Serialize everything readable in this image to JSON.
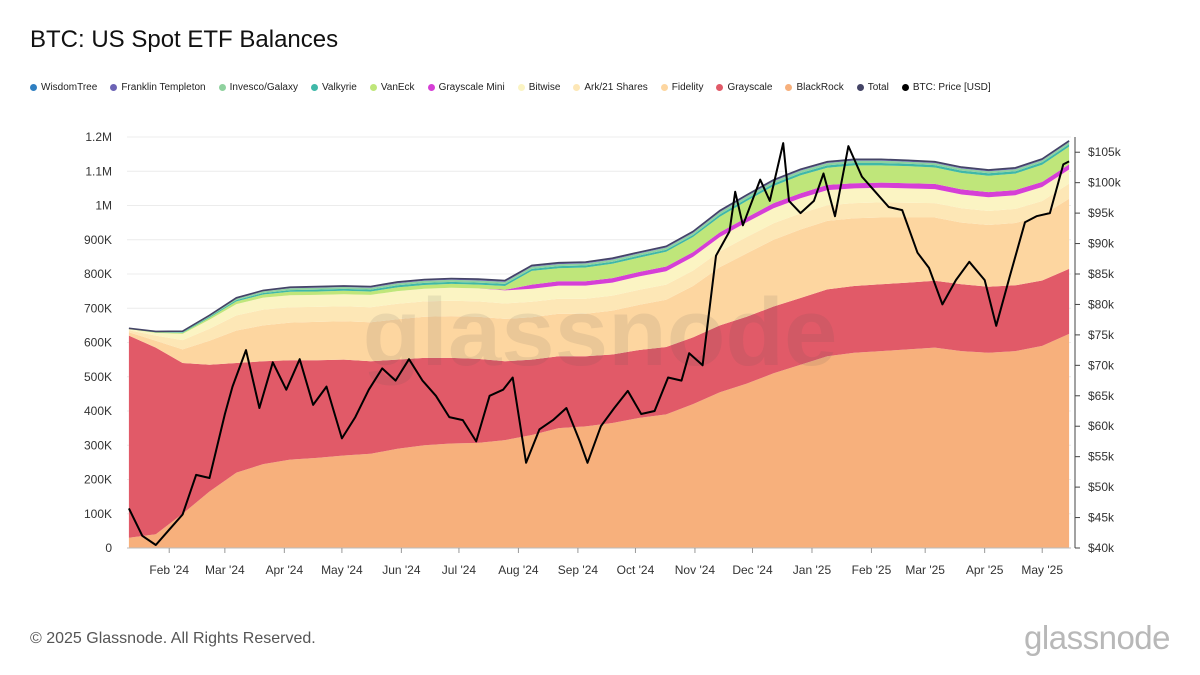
{
  "title": "BTC: US Spot ETF Balances",
  "footer": "© 2025 Glassnode. All Rights Reserved.",
  "brand": "glassnode",
  "watermark": "glassnode",
  "chart_data": {
    "type": "area",
    "title": "BTC: US Spot ETF Balances",
    "x_ticks": [
      "Feb '24",
      "Mar '24",
      "Apr '24",
      "May '24",
      "Jun '24",
      "Jul '24",
      "Aug '24",
      "Sep '24",
      "Oct '24",
      "Nov '24",
      "Dec '24",
      "Jan '25",
      "Feb '25",
      "Mar '25",
      "Apr '25",
      "May '25"
    ],
    "y_left_ticks": [
      "0",
      "100K",
      "200K",
      "300K",
      "400K",
      "500K",
      "600K",
      "700K",
      "800K",
      "900K",
      "1M",
      "1.1M",
      "1.2M"
    ],
    "y_left_range": [
      0,
      1200000
    ],
    "y_right_ticks": [
      "$40k",
      "$45k",
      "$50k",
      "$55k",
      "$60k",
      "$65k",
      "$70k",
      "$75k",
      "$80k",
      "$85k",
      "$90k",
      "$95k",
      "$100k",
      "$105k"
    ],
    "y_right_range": [
      40000,
      107500
    ],
    "legend_position": "top",
    "x": [
      "2024-01-11",
      "2024-01-25",
      "2024-02-08",
      "2024-02-22",
      "2024-03-07",
      "2024-03-21",
      "2024-04-04",
      "2024-04-18",
      "2024-05-02",
      "2024-05-16",
      "2024-05-30",
      "2024-06-13",
      "2024-06-27",
      "2024-07-11",
      "2024-07-25",
      "2024-08-08",
      "2024-08-22",
      "2024-09-05",
      "2024-09-19",
      "2024-10-03",
      "2024-10-17",
      "2024-10-31",
      "2024-11-14",
      "2024-11-28",
      "2024-12-12",
      "2024-12-26",
      "2025-01-09",
      "2025-01-23",
      "2025-02-06",
      "2025-02-20",
      "2025-03-06",
      "2025-03-20",
      "2025-04-03",
      "2025-04-17",
      "2025-05-01",
      "2025-05-15"
    ],
    "series": [
      {
        "name": "BlackRock",
        "color": "#f7b07c",
        "values": [
          30000,
          40000,
          100000,
          165000,
          220000,
          245000,
          258000,
          263000,
          270000,
          275000,
          290000,
          300000,
          305000,
          307000,
          315000,
          330000,
          350000,
          355000,
          365000,
          380000,
          390000,
          420000,
          455000,
          480000,
          510000,
          535000,
          560000,
          570000,
          575000,
          580000,
          585000,
          575000,
          570000,
          575000,
          590000,
          625000
        ]
      },
      {
        "name": "Grayscale",
        "color": "#e15a68",
        "values": [
          590000,
          545000,
          440000,
          370000,
          320000,
          300000,
          290000,
          285000,
          280000,
          270000,
          260000,
          255000,
          250000,
          245000,
          230000,
          220000,
          210000,
          205000,
          200000,
          198000,
          197000,
          195000,
          195000,
          195000,
          195000,
          195000,
          195000,
          195000,
          195000,
          195000,
          195000,
          195000,
          193000,
          192000,
          191000,
          190000
        ]
      },
      {
        "name": "Fidelity",
        "color": "#fdd6a0",
        "values": [
          10000,
          20000,
          40000,
          70000,
          95000,
          105000,
          110000,
          112000,
          112000,
          114000,
          118000,
          120000,
          122000,
          123000,
          124000,
          124000,
          124000,
          124000,
          128000,
          132000,
          138000,
          150000,
          170000,
          185000,
          195000,
          200000,
          200000,
          198000,
          195000,
          190000,
          185000,
          180000,
          180000,
          182000,
          190000,
          205000
        ]
      },
      {
        "name": "Ark/21 Shares",
        "color": "#fde7b6",
        "values": [
          6000,
          15000,
          27000,
          35000,
          44000,
          46000,
          45000,
          44000,
          44000,
          44000,
          45000,
          45000,
          45000,
          45000,
          45000,
          45000,
          44000,
          44000,
          44000,
          44000,
          44000,
          45000,
          46000,
          48000,
          48000,
          47000,
          46000,
          44000,
          44000,
          43000,
          42000,
          42000,
          41000,
          41000,
          42000,
          44000
        ]
      },
      {
        "name": "Bitwise",
        "color": "#fbf4c3",
        "values": [
          3000,
          8000,
          18000,
          27000,
          33000,
          35000,
          35000,
          35000,
          35000,
          36000,
          37000,
          37000,
          38000,
          38000,
          38000,
          38000,
          38000,
          38000,
          38000,
          39000,
          39000,
          40000,
          42000,
          43000,
          44000,
          44000,
          44000,
          43000,
          43000,
          42000,
          41000,
          40000,
          40000,
          40000,
          41000,
          41000
        ]
      },
      {
        "name": "Grayscale Mini",
        "color": "#d63fd6",
        "values": [
          0,
          0,
          0,
          0,
          0,
          0,
          0,
          0,
          0,
          0,
          0,
          0,
          0,
          0,
          2000,
          12000,
          13000,
          13000,
          13000,
          13000,
          14000,
          14000,
          14000,
          14000,
          15000,
          15000,
          15000,
          15000,
          15000,
          15000,
          15000,
          15000,
          15000,
          15000,
          15000,
          15000
        ]
      },
      {
        "name": "VanEck",
        "color": "#bfe67a",
        "values": [
          1000,
          1500,
          3000,
          5000,
          8000,
          9000,
          10000,
          10000,
          10000,
          10000,
          11000,
          11000,
          11000,
          11000,
          11000,
          40000,
          38000,
          40000,
          42000,
          42000,
          43000,
          44000,
          45000,
          48000,
          50000,
          52000,
          50000,
          52000,
          50000,
          50000,
          48000,
          48000,
          48000,
          48000,
          50000,
          52000
        ]
      },
      {
        "name": "Valkyrie",
        "color": "#3fb8a8",
        "values": [
          500,
          1000,
          2000,
          3000,
          4000,
          4500,
          5000,
          5500,
          5500,
          5500,
          6000,
          6000,
          6000,
          6000,
          6000,
          6000,
          6000,
          6000,
          6000,
          6000,
          6000,
          6000,
          7000,
          7000,
          7000,
          7000,
          7000,
          7000,
          7000,
          7000,
          7000,
          7000,
          7000,
          7000,
          7000,
          7000
        ]
      },
      {
        "name": "Invesco/Galaxy",
        "color": "#8fd19e",
        "values": [
          500,
          1000,
          2000,
          3000,
          4000,
          5000,
          5500,
          5500,
          5500,
          5500,
          6000,
          6000,
          6000,
          6000,
          6000,
          6000,
          6000,
          6000,
          6000,
          6000,
          6000,
          6000,
          7000,
          7000,
          7000,
          7000,
          7000,
          7000,
          7000,
          6000,
          6000,
          6000,
          6000,
          6000,
          6000,
          6000
        ]
      },
      {
        "name": "Franklin Templeton",
        "color": "#6c63b5",
        "values": [
          500,
          600,
          800,
          1000,
          2000,
          2000,
          2200,
          2500,
          2500,
          2500,
          3000,
          3000,
          3000,
          3000,
          3000,
          3000,
          3000,
          3000,
          3000,
          3000,
          3000,
          3000,
          3000,
          3000,
          3000,
          3000,
          3000,
          3000,
          3000,
          3000,
          3000,
          3000,
          3000,
          3000,
          3000,
          3000
        ]
      },
      {
        "name": "WisdomTree",
        "color": "#2f7fc1",
        "values": [
          100,
          200,
          300,
          400,
          500,
          600,
          700,
          800,
          900,
          1000,
          1000,
          1000,
          1000,
          1000,
          1000,
          1000,
          1000,
          1000,
          1000,
          1000,
          1000,
          1000,
          1000,
          1000,
          1000,
          1000,
          1000,
          1000,
          1000,
          1000,
          1000,
          1000,
          1000,
          1000,
          1000,
          1000
        ]
      }
    ],
    "total": {
      "name": "Total",
      "color": "#444466"
    },
    "price": {
      "name": "BTC: Price [USD]",
      "color": "#000000",
      "x": [
        "2024-01-11",
        "2024-01-18",
        "2024-01-25",
        "2024-02-01",
        "2024-02-08",
        "2024-02-15",
        "2024-02-22",
        "2024-03-01",
        "2024-03-05",
        "2024-03-12",
        "2024-03-19",
        "2024-03-26",
        "2024-04-02",
        "2024-04-09",
        "2024-04-16",
        "2024-04-23",
        "2024-05-01",
        "2024-05-08",
        "2024-05-15",
        "2024-05-22",
        "2024-05-29",
        "2024-06-05",
        "2024-06-12",
        "2024-06-19",
        "2024-06-26",
        "2024-07-03",
        "2024-07-10",
        "2024-07-17",
        "2024-07-24",
        "2024-07-29",
        "2024-08-05",
        "2024-08-12",
        "2024-08-19",
        "2024-08-26",
        "2024-09-02",
        "2024-09-06",
        "2024-09-13",
        "2024-09-20",
        "2024-09-27",
        "2024-10-04",
        "2024-10-11",
        "2024-10-18",
        "2024-10-25",
        "2024-10-29",
        "2024-11-05",
        "2024-11-12",
        "2024-11-19",
        "2024-11-22",
        "2024-11-26",
        "2024-12-05",
        "2024-12-10",
        "2024-12-17",
        "2024-12-20",
        "2024-12-26",
        "2025-01-02",
        "2025-01-07",
        "2025-01-13",
        "2025-01-20",
        "2025-01-27",
        "2025-02-03",
        "2025-02-10",
        "2025-02-17",
        "2025-02-25",
        "2025-03-03",
        "2025-03-10",
        "2025-03-17",
        "2025-03-24",
        "2025-04-01",
        "2025-04-07",
        "2025-04-14",
        "2025-04-22",
        "2025-04-28",
        "2025-05-05",
        "2025-05-12",
        "2025-05-15"
      ],
      "values": [
        46500,
        42000,
        40500,
        43000,
        45500,
        52000,
        51500,
        62000,
        66500,
        72500,
        63000,
        70500,
        66000,
        71000,
        63500,
        66500,
        58000,
        61500,
        66000,
        69500,
        67500,
        71000,
        67500,
        65000,
        61500,
        61000,
        57500,
        65000,
        66000,
        68000,
        54000,
        59500,
        61000,
        63000,
        57500,
        54000,
        60000,
        63000,
        65800,
        62000,
        62500,
        68000,
        67500,
        72000,
        70000,
        88000,
        92000,
        98500,
        93000,
        100500,
        97000,
        106500,
        97000,
        95000,
        97000,
        101500,
        94500,
        106000,
        101000,
        98500,
        96000,
        95500,
        88500,
        86000,
        80000,
        84000,
        87000,
        84000,
        76500,
        84500,
        93500,
        94500,
        95000,
        103000,
        103500
      ]
    }
  }
}
